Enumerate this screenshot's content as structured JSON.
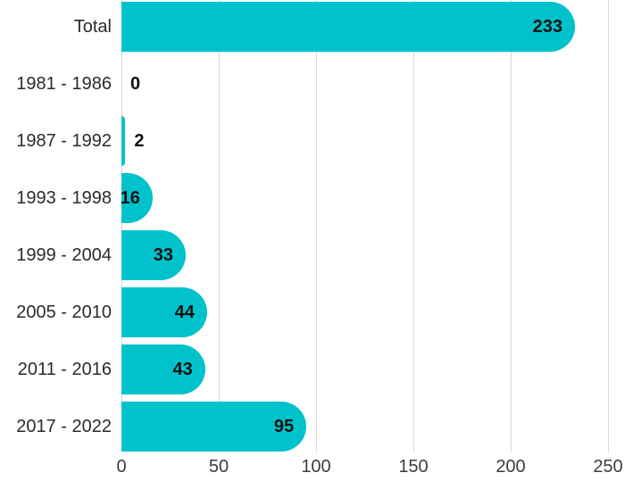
{
  "chart_data": {
    "type": "bar",
    "orientation": "horizontal",
    "title": "",
    "categories": [
      "Total",
      "1981 - 1986",
      "1987 - 1992",
      "1993 - 1998",
      "1999 - 2004",
      "2005 - 2010",
      "2011 - 2016",
      "2017 - 2022"
    ],
    "values": [
      233,
      0,
      2,
      16,
      33,
      44,
      43,
      95
    ],
    "value_labels": [
      "233",
      "0",
      "2",
      "16",
      "33",
      "44",
      "43",
      "95"
    ],
    "xlabel": "",
    "ylabel": "",
    "xlim": [
      0,
      250
    ],
    "x_ticks": [
      "0",
      "50",
      "100",
      "150",
      "200",
      "250"
    ],
    "x_tick_values": [
      0,
      50,
      100,
      150,
      200,
      250
    ],
    "grid": "vertical-only",
    "legend": "none",
    "colors": {
      "bar": "#00C2CB",
      "value_label": "#111111",
      "category_label": "#2b2b2b",
      "tick_label": "#3d3d3d",
      "gridline": "#d9d9d9",
      "background": "#ffffff"
    }
  }
}
